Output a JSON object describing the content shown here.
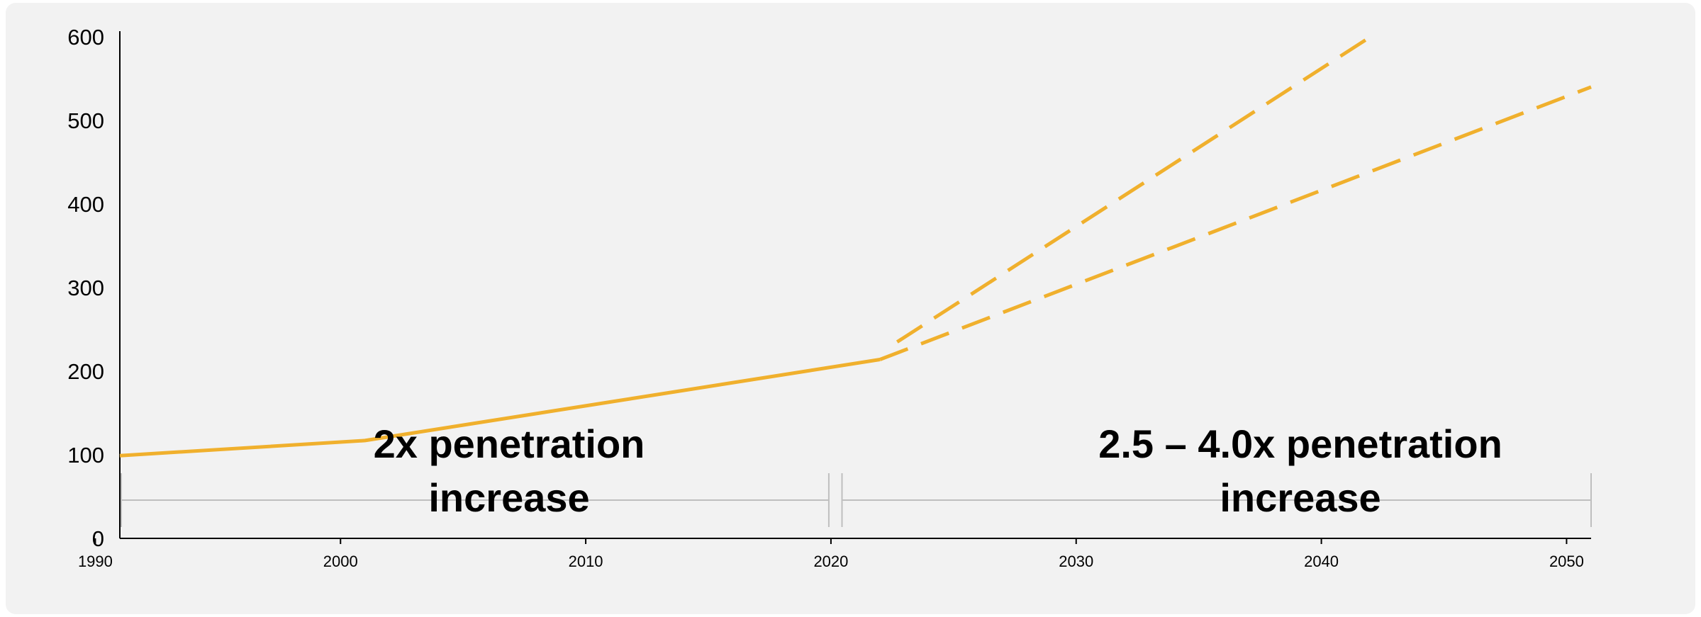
{
  "chart_data": {
    "type": "line",
    "title": "",
    "xlabel": "",
    "ylabel": "",
    "xlim": [
      1991,
      2051
    ],
    "ylim": [
      0,
      600
    ],
    "x_ticks": [
      1990,
      2000,
      2010,
      2020,
      2030,
      2040,
      2050
    ],
    "x_tick_labels": [
      "1990",
      "2000",
      "2010",
      "2020",
      "2030",
      "2040",
      "2050"
    ],
    "y_ticks": [
      0,
      100,
      200,
      300,
      400,
      500,
      600
    ],
    "y_tick_labels": [
      "0",
      "100",
      "200",
      "300",
      "400",
      "500",
      "600"
    ],
    "grid": false,
    "legend": "none",
    "colors": {
      "line": "#f0b02d",
      "bracket": "#bfbfbf",
      "axis": "#000000"
    },
    "series": [
      {
        "style": "solid",
        "points": [
          [
            1991,
            99
          ],
          [
            2001,
            117
          ],
          [
            2022,
            214
          ]
        ]
      },
      {
        "style": "dashed",
        "points": [
          [
            2022,
            214
          ],
          [
            2051,
            540
          ]
        ]
      },
      {
        "style": "dashed",
        "points": [
          [
            2022.7,
            235
          ],
          [
            2042,
            600
          ]
        ]
      }
    ],
    "annotations": [
      {
        "lines": [
          "2x penetration",
          "increase"
        ],
        "x_from": 1991,
        "x_to": 2020
      },
      {
        "lines": [
          "2.5 – 4.0x penetration",
          "increase"
        ],
        "x_from": 2021,
        "x_to": 2051
      }
    ]
  }
}
